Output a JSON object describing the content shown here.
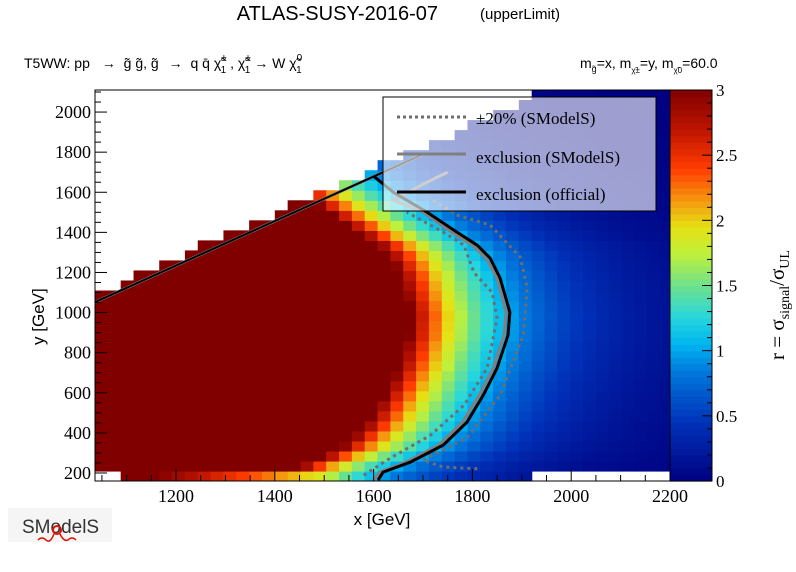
{
  "title": "ATLAS-SUSY-2016-07",
  "subtitle": "(upperLimit)",
  "process": {
    "prefix": "T5WW: pp",
    "arrow": "→",
    "part1": "g̃ g̃, g̃",
    "part2": "q q̄ χ̃",
    "sub1": "1",
    "sup1": "±",
    "part3": ", χ̃",
    "part4": " → W χ̃",
    "sup0": "0"
  },
  "masses": {
    "m_gluino": "m",
    "g_sub": "g̃",
    "eq_x": "=x, m",
    "chi_pm_sub": "χ̃±",
    "chi_sub_index": "1",
    "eq_y": "=y, m",
    "chi0_sub": "χ̃0",
    "eq_60": "=60.0"
  },
  "logo": "SModelS",
  "chart_data": {
    "type": "heatmap",
    "xlabel": "x [GeV]",
    "ylabel": "y [GeV]",
    "zlabel": {
      "main": "r = σ",
      "sub1": "signal",
      "slash": "/σ",
      "sub2": "UL"
    },
    "xlim": [
      1036,
      2200
    ],
    "ylim": [
      160,
      2110
    ],
    "zlim": [
      0,
      3
    ],
    "xticks": [
      1200,
      1400,
      1600,
      1800,
      2000,
      2200
    ],
    "yticks": [
      200,
      400,
      600,
      800,
      1000,
      1200,
      1400,
      1600,
      1800,
      2000
    ],
    "zticks": [
      0,
      0.5,
      1,
      1.5,
      2,
      2.5,
      3
    ],
    "heatmap_model": {
      "description_free": true,
      "bin_width_x": 26,
      "bin_width_y": 50,
      "r_at_boundary": 1,
      "decay_per_gev": 0.0055,
      "max_r_shown": 3
    },
    "legend": {
      "placement": "top-right",
      "entries": [
        {
          "label": "±20% (SModelS)",
          "style": "dotted",
          "color": "#6e6e6e"
        },
        {
          "label": "exclusion (SModelS)",
          "style": "solid",
          "color": "#808080"
        },
        {
          "label": "exclusion (official)",
          "style": "solid",
          "color": "#000000"
        }
      ]
    },
    "kinematic_edge": [
      [
        1036,
        1052
      ],
      [
        1562,
        1636
      ],
      [
        1700,
        1790
      ]
    ],
    "contours": {
      "official": [
        [
          1609,
          164
        ],
        [
          1619,
          204
        ],
        [
          1674,
          254
        ],
        [
          1741,
          339
        ],
        [
          1789,
          453
        ],
        [
          1822,
          588
        ],
        [
          1850,
          723
        ],
        [
          1872,
          887
        ],
        [
          1876,
          1002
        ],
        [
          1856,
          1172
        ],
        [
          1836,
          1271
        ],
        [
          1810,
          1336
        ],
        [
          1769,
          1401
        ],
        [
          1708,
          1501
        ],
        [
          1640,
          1600
        ],
        [
          1600,
          1680
        ]
      ],
      "smodels": [
        [
          1600,
          164
        ],
        [
          1612,
          204
        ],
        [
          1665,
          254
        ],
        [
          1732,
          339
        ],
        [
          1780,
          453
        ],
        [
          1814,
          588
        ],
        [
          1842,
          723
        ],
        [
          1864,
          887
        ],
        [
          1868,
          1002
        ],
        [
          1850,
          1172
        ],
        [
          1828,
          1271
        ],
        [
          1800,
          1336
        ],
        [
          1758,
          1401
        ],
        [
          1700,
          1501
        ],
        [
          1640,
          1560
        ],
        [
          1700,
          1640
        ],
        [
          1750,
          1700
        ]
      ],
      "minus20": [
        [
          1580,
          189
        ],
        [
          1634,
          274
        ],
        [
          1715,
          388
        ],
        [
          1783,
          538
        ],
        [
          1830,
          723
        ],
        [
          1850,
          972
        ],
        [
          1840,
          1100
        ],
        [
          1803,
          1200
        ],
        [
          1783,
          1336
        ],
        [
          1741,
          1401
        ],
        [
          1667,
          1501
        ]
      ],
      "plus20": [
        [
          1810,
          221
        ],
        [
          1740,
          230
        ],
        [
          1700,
          264
        ],
        [
          1789,
          375
        ],
        [
          1856,
          588
        ],
        [
          1903,
          887
        ],
        [
          1911,
          1124
        ],
        [
          1897,
          1276
        ],
        [
          1836,
          1436
        ],
        [
          1769,
          1486
        ],
        [
          1720,
          1560
        ]
      ]
    }
  }
}
